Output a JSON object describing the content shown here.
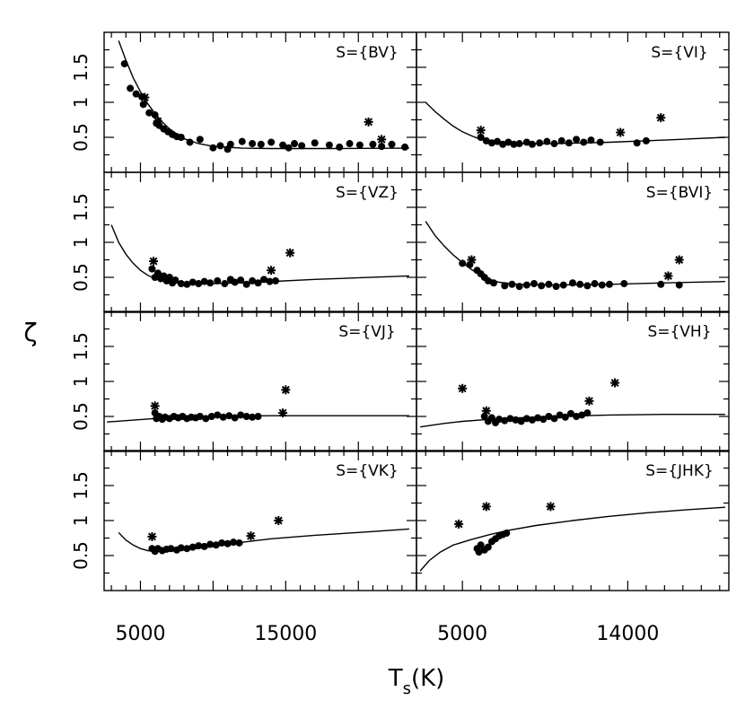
{
  "figure": {
    "ylabel": "ζ",
    "xlabel_main": "T",
    "xlabel_sub": "s",
    "xlabel_unit": "(K)"
  },
  "chart_data": [
    {
      "type": "scatter",
      "label": "S={BV}",
      "column": "left",
      "xlim": [
        2500,
        24000
      ],
      "ylim": [
        0,
        2
      ],
      "xticks": [
        5000,
        15000
      ],
      "yticks": [
        0.5,
        1,
        1.5
      ],
      "ytick_labels": [
        "0.5",
        "1",
        "1.5"
      ],
      "curve": [
        [
          3500,
          1.88
        ],
        [
          4000,
          1.6
        ],
        [
          4500,
          1.35
        ],
        [
          5000,
          1.15
        ],
        [
          5500,
          0.98
        ],
        [
          6000,
          0.84
        ],
        [
          6500,
          0.72
        ],
        [
          7000,
          0.62
        ],
        [
          8000,
          0.48
        ],
        [
          9000,
          0.41
        ],
        [
          10000,
          0.37
        ],
        [
          12000,
          0.345
        ],
        [
          14000,
          0.34
        ],
        [
          18000,
          0.34
        ],
        [
          23500,
          0.345
        ]
      ],
      "points": [
        [
          3900,
          1.55
        ],
        [
          4300,
          1.2
        ],
        [
          4700,
          1.12
        ],
        [
          5100,
          1.08
        ],
        [
          5200,
          0.97
        ],
        [
          5600,
          0.85
        ],
        [
          6000,
          0.82
        ],
        [
          6100,
          0.7
        ],
        [
          6300,
          0.67
        ],
        [
          6600,
          0.62
        ],
        [
          6900,
          0.58
        ],
        [
          7200,
          0.54
        ],
        [
          7500,
          0.51
        ],
        [
          7800,
          0.5
        ],
        [
          8400,
          0.43
        ],
        [
          9100,
          0.47
        ],
        [
          10000,
          0.35
        ],
        [
          10500,
          0.38
        ],
        [
          11000,
          0.33
        ],
        [
          11200,
          0.4
        ],
        [
          12000,
          0.44
        ],
        [
          12700,
          0.41
        ],
        [
          13300,
          0.4
        ],
        [
          14000,
          0.43
        ],
        [
          14800,
          0.39
        ],
        [
          15200,
          0.35
        ],
        [
          15600,
          0.41
        ],
        [
          16100,
          0.38
        ],
        [
          17000,
          0.42
        ],
        [
          18000,
          0.39
        ],
        [
          18700,
          0.36
        ],
        [
          19400,
          0.41
        ],
        [
          20100,
          0.39
        ],
        [
          21000,
          0.4
        ],
        [
          21600,
          0.37
        ],
        [
          22300,
          0.4
        ],
        [
          23200,
          0.36
        ]
      ],
      "stars": [
        [
          5300,
          1.07
        ],
        [
          6200,
          0.73
        ],
        [
          20700,
          0.72
        ],
        [
          21600,
          0.47
        ]
      ]
    },
    {
      "type": "scatter",
      "label": "S={VI}",
      "column": "right",
      "xlim": [
        2500,
        19500
      ],
      "ylim": [
        0,
        2
      ],
      "xticks": [
        5000,
        14000
      ],
      "yticks": [
        0.5,
        1,
        1.5
      ],
      "ytick_labels": [
        "0.5",
        "1",
        "1.5"
      ],
      "curve": [
        [
          3000,
          1.0
        ],
        [
          3500,
          0.87
        ],
        [
          4000,
          0.76
        ],
        [
          4500,
          0.66
        ],
        [
          5000,
          0.58
        ],
        [
          5500,
          0.52
        ],
        [
          6000,
          0.47
        ],
        [
          7000,
          0.42
        ],
        [
          8000,
          0.41
        ],
        [
          10000,
          0.41
        ],
        [
          13000,
          0.43
        ],
        [
          16000,
          0.46
        ],
        [
          19300,
          0.5
        ]
      ],
      "points": [
        [
          6000,
          0.5
        ],
        [
          6300,
          0.45
        ],
        [
          6600,
          0.42
        ],
        [
          6900,
          0.44
        ],
        [
          7200,
          0.4
        ],
        [
          7500,
          0.43
        ],
        [
          7800,
          0.4
        ],
        [
          8100,
          0.41
        ],
        [
          8500,
          0.43
        ],
        [
          8800,
          0.4
        ],
        [
          9200,
          0.42
        ],
        [
          9600,
          0.44
        ],
        [
          10000,
          0.41
        ],
        [
          10400,
          0.45
        ],
        [
          10800,
          0.42
        ],
        [
          11200,
          0.47
        ],
        [
          11600,
          0.43
        ],
        [
          12000,
          0.46
        ],
        [
          12500,
          0.43
        ],
        [
          14500,
          0.42
        ],
        [
          15000,
          0.45
        ]
      ],
      "stars": [
        [
          6000,
          0.6
        ],
        [
          13600,
          0.57
        ],
        [
          15800,
          0.78
        ]
      ]
    },
    {
      "type": "scatter",
      "label": "S={VZ}",
      "column": "left",
      "xlim": [
        2500,
        24000
      ],
      "ylim": [
        0,
        2
      ],
      "xticks": [
        5000,
        15000
      ],
      "yticks": [
        0.5,
        1,
        1.5
      ],
      "ytick_labels": [
        "0.5",
        "1",
        "1.5"
      ],
      "curve": [
        [
          3000,
          1.25
        ],
        [
          3500,
          1.0
        ],
        [
          4000,
          0.83
        ],
        [
          4500,
          0.7
        ],
        [
          5000,
          0.6
        ],
        [
          5500,
          0.53
        ],
        [
          6000,
          0.48
        ],
        [
          7000,
          0.43
        ],
        [
          8000,
          0.41
        ],
        [
          10000,
          0.41
        ],
        [
          13000,
          0.43
        ],
        [
          17000,
          0.47
        ],
        [
          23500,
          0.52
        ]
      ],
      "points": [
        [
          5800,
          0.62
        ],
        [
          6000,
          0.5
        ],
        [
          6200,
          0.56
        ],
        [
          6400,
          0.48
        ],
        [
          6600,
          0.52
        ],
        [
          6800,
          0.45
        ],
        [
          7000,
          0.5
        ],
        [
          7200,
          0.42
        ],
        [
          7400,
          0.46
        ],
        [
          7800,
          0.41
        ],
        [
          8200,
          0.4
        ],
        [
          8600,
          0.43
        ],
        [
          9000,
          0.41
        ],
        [
          9400,
          0.44
        ],
        [
          9800,
          0.42
        ],
        [
          10300,
          0.45
        ],
        [
          10800,
          0.41
        ],
        [
          11200,
          0.47
        ],
        [
          11500,
          0.43
        ],
        [
          11900,
          0.46
        ],
        [
          12300,
          0.4
        ],
        [
          12700,
          0.45
        ],
        [
          13100,
          0.42
        ],
        [
          13500,
          0.47
        ],
        [
          13900,
          0.44
        ],
        [
          14300,
          0.45
        ]
      ],
      "stars": [
        [
          5900,
          0.73
        ],
        [
          14000,
          0.6
        ],
        [
          15300,
          0.85
        ]
      ]
    },
    {
      "type": "scatter",
      "label": "S={BVI}",
      "column": "right",
      "xlim": [
        2500,
        19500
      ],
      "ylim": [
        0,
        2
      ],
      "xticks": [
        5000,
        14000
      ],
      "yticks": [
        0.5,
        1,
        1.5
      ],
      "ytick_labels": [
        "0.5",
        "1",
        "1.5"
      ],
      "curve": [
        [
          3000,
          1.3
        ],
        [
          3500,
          1.1
        ],
        [
          4000,
          0.95
        ],
        [
          4500,
          0.82
        ],
        [
          5000,
          0.71
        ],
        [
          5500,
          0.61
        ],
        [
          6000,
          0.53
        ],
        [
          6500,
          0.47
        ],
        [
          7000,
          0.43
        ],
        [
          8000,
          0.4
        ],
        [
          10000,
          0.39
        ],
        [
          13000,
          0.4
        ],
        [
          16000,
          0.42
        ],
        [
          19300,
          0.44
        ]
      ],
      "points": [
        [
          5000,
          0.7
        ],
        [
          5400,
          0.68
        ],
        [
          5800,
          0.6
        ],
        [
          6000,
          0.55
        ],
        [
          6200,
          0.5
        ],
        [
          6400,
          0.45
        ],
        [
          6700,
          0.42
        ],
        [
          7300,
          0.38
        ],
        [
          7700,
          0.4
        ],
        [
          8100,
          0.37
        ],
        [
          8500,
          0.39
        ],
        [
          8900,
          0.41
        ],
        [
          9300,
          0.38
        ],
        [
          9700,
          0.4
        ],
        [
          10100,
          0.37
        ],
        [
          10500,
          0.39
        ],
        [
          11000,
          0.42
        ],
        [
          11400,
          0.4
        ],
        [
          11800,
          0.38
        ],
        [
          12200,
          0.41
        ],
        [
          12600,
          0.39
        ],
        [
          13000,
          0.4
        ],
        [
          13800,
          0.41
        ],
        [
          15800,
          0.4
        ],
        [
          16800,
          0.39
        ]
      ],
      "stars": [
        [
          5500,
          0.75
        ],
        [
          16200,
          0.52
        ],
        [
          16800,
          0.75
        ]
      ]
    },
    {
      "type": "scatter",
      "label": "S={VJ}",
      "column": "left",
      "xlim": [
        2500,
        24000
      ],
      "ylim": [
        0,
        2
      ],
      "xticks": [
        5000,
        15000
      ],
      "yticks": [
        0.5,
        1,
        1.5
      ],
      "ytick_labels": [
        "0.5",
        "1",
        "1.5"
      ],
      "curve": [
        [
          2700,
          0.42
        ],
        [
          4000,
          0.44
        ],
        [
          6000,
          0.47
        ],
        [
          8000,
          0.49
        ],
        [
          10000,
          0.5
        ],
        [
          14000,
          0.51
        ],
        [
          18000,
          0.51
        ],
        [
          23500,
          0.51
        ]
      ],
      "points": [
        [
          6000,
          0.55
        ],
        [
          6100,
          0.47
        ],
        [
          6300,
          0.5
        ],
        [
          6500,
          0.46
        ],
        [
          6700,
          0.49
        ],
        [
          7000,
          0.47
        ],
        [
          7300,
          0.5
        ],
        [
          7600,
          0.48
        ],
        [
          7900,
          0.5
        ],
        [
          8200,
          0.47
        ],
        [
          8500,
          0.49
        ],
        [
          8800,
          0.48
        ],
        [
          9100,
          0.5
        ],
        [
          9500,
          0.47
        ],
        [
          9900,
          0.5
        ],
        [
          10300,
          0.52
        ],
        [
          10700,
          0.49
        ],
        [
          11100,
          0.51
        ],
        [
          11500,
          0.48
        ],
        [
          11900,
          0.52
        ],
        [
          12300,
          0.5
        ],
        [
          12700,
          0.49
        ],
        [
          13100,
          0.5
        ]
      ],
      "stars": [
        [
          6000,
          0.65
        ],
        [
          14800,
          0.55
        ],
        [
          15000,
          0.88
        ]
      ]
    },
    {
      "type": "scatter",
      "label": "S={VH}",
      "column": "right",
      "xlim": [
        2500,
        19500
      ],
      "ylim": [
        0,
        2
      ],
      "xticks": [
        5000,
        14000
      ],
      "yticks": [
        0.5,
        1,
        1.5
      ],
      "ytick_labels": [
        "0.5",
        "1",
        "1.5"
      ],
      "curve": [
        [
          2700,
          0.35
        ],
        [
          4000,
          0.4
        ],
        [
          5000,
          0.43
        ],
        [
          6000,
          0.45
        ],
        [
          8000,
          0.48
        ],
        [
          10000,
          0.5
        ],
        [
          13000,
          0.52
        ],
        [
          16000,
          0.53
        ],
        [
          19300,
          0.53
        ]
      ],
      "points": [
        [
          6200,
          0.5
        ],
        [
          6400,
          0.43
        ],
        [
          6600,
          0.48
        ],
        [
          6800,
          0.41
        ],
        [
          7000,
          0.46
        ],
        [
          7300,
          0.44
        ],
        [
          7600,
          0.47
        ],
        [
          7900,
          0.45
        ],
        [
          8200,
          0.43
        ],
        [
          8500,
          0.47
        ],
        [
          8800,
          0.45
        ],
        [
          9100,
          0.48
        ],
        [
          9400,
          0.46
        ],
        [
          9700,
          0.5
        ],
        [
          10000,
          0.47
        ],
        [
          10300,
          0.52
        ],
        [
          10600,
          0.49
        ],
        [
          10900,
          0.54
        ],
        [
          11200,
          0.5
        ],
        [
          11500,
          0.52
        ],
        [
          11800,
          0.55
        ]
      ],
      "stars": [
        [
          5000,
          0.9
        ],
        [
          6300,
          0.58
        ],
        [
          11900,
          0.72
        ],
        [
          13300,
          0.98
        ]
      ]
    },
    {
      "type": "scatter",
      "label": "S={VK}",
      "column": "left",
      "xlim": [
        2500,
        24000
      ],
      "ylim": [
        0,
        2
      ],
      "xticks": [
        5000,
        15000
      ],
      "yticks": [
        0.5,
        1,
        1.5
      ],
      "ytick_labels": [
        "0.5",
        "1",
        "1.5"
      ],
      "curve": [
        [
          3500,
          0.83
        ],
        [
          4000,
          0.72
        ],
        [
          4500,
          0.65
        ],
        [
          5000,
          0.6
        ],
        [
          5500,
          0.57
        ],
        [
          6000,
          0.56
        ],
        [
          7000,
          0.56
        ],
        [
          8000,
          0.58
        ],
        [
          10000,
          0.63
        ],
        [
          12000,
          0.69
        ],
        [
          14000,
          0.74
        ],
        [
          17000,
          0.79
        ],
        [
          20000,
          0.83
        ],
        [
          23500,
          0.88
        ]
      ],
      "points": [
        [
          5800,
          0.6
        ],
        [
          6000,
          0.56
        ],
        [
          6200,
          0.6
        ],
        [
          6500,
          0.57
        ],
        [
          6800,
          0.59
        ],
        [
          7100,
          0.6
        ],
        [
          7500,
          0.58
        ],
        [
          7800,
          0.61
        ],
        [
          8200,
          0.6
        ],
        [
          8600,
          0.62
        ],
        [
          9000,
          0.64
        ],
        [
          9400,
          0.63
        ],
        [
          9800,
          0.66
        ],
        [
          10200,
          0.65
        ],
        [
          10600,
          0.68
        ],
        [
          11000,
          0.67
        ],
        [
          11400,
          0.69
        ],
        [
          11800,
          0.68
        ]
      ],
      "stars": [
        [
          5800,
          0.77
        ],
        [
          12600,
          0.78
        ],
        [
          14500,
          1.0
        ]
      ]
    },
    {
      "type": "scatter",
      "label": "S={JHK}",
      "column": "right",
      "xlim": [
        2500,
        19500
      ],
      "ylim": [
        0,
        2
      ],
      "xticks": [
        5000,
        14000
      ],
      "yticks": [
        0.5,
        1,
        1.5
      ],
      "ytick_labels": [
        "0.5",
        "1",
        "1.5"
      ],
      "curve": [
        [
          2700,
          0.28
        ],
        [
          3200,
          0.43
        ],
        [
          3800,
          0.55
        ],
        [
          4500,
          0.65
        ],
        [
          5500,
          0.73
        ],
        [
          6500,
          0.8
        ],
        [
          7500,
          0.86
        ],
        [
          9000,
          0.93
        ],
        [
          11000,
          1.0
        ],
        [
          13000,
          1.06
        ],
        [
          15000,
          1.11
        ],
        [
          17000,
          1.15
        ],
        [
          19300,
          1.19
        ]
      ],
      "points": [
        [
          5800,
          0.6
        ],
        [
          5900,
          0.55
        ],
        [
          6000,
          0.65
        ],
        [
          6200,
          0.58
        ],
        [
          6400,
          0.62
        ],
        [
          6600,
          0.7
        ],
        [
          6800,
          0.74
        ],
        [
          7000,
          0.78
        ],
        [
          7200,
          0.8
        ],
        [
          7400,
          0.82
        ]
      ],
      "stars": [
        [
          4800,
          0.95
        ],
        [
          6300,
          1.2
        ],
        [
          9800,
          1.2
        ]
      ]
    }
  ]
}
